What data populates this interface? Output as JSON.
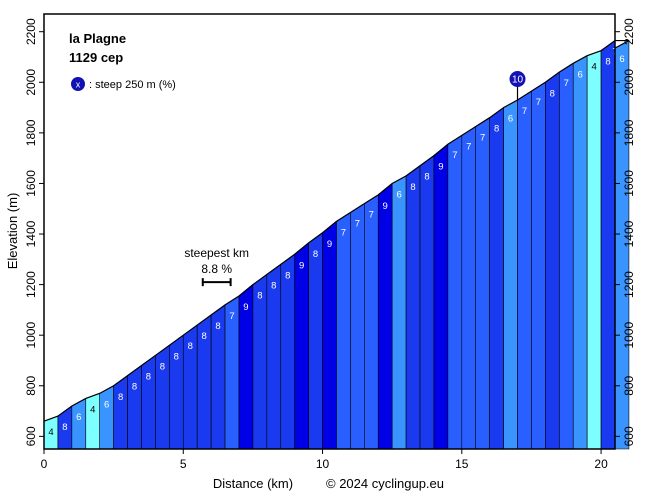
{
  "chart_data": {
    "type": "area",
    "title": "la Plagne",
    "subtitle": "1129 cep",
    "xlabel": "Distance (km)",
    "ylabel": "Elevation (m)",
    "credit": "© 2024 cyclingup.eu",
    "xlim": [
      0,
      20.5
    ],
    "ylim": [
      550,
      2270
    ],
    "xticks": [
      0,
      5,
      10,
      15,
      20
    ],
    "yticks": [
      600,
      800,
      1000,
      1200,
      1400,
      1600,
      1800,
      2000,
      2200
    ],
    "start_elevation": 660,
    "segment_length_km": 0.5,
    "gradients": [
      4,
      8,
      6,
      4,
      6,
      8,
      8,
      8,
      8,
      8,
      8,
      8,
      8,
      7,
      9,
      8,
      8,
      8,
      9,
      8,
      9,
      7,
      7,
      7,
      9,
      6,
      8,
      8,
      9,
      7,
      7,
      7,
      8,
      6,
      7,
      7,
      8,
      7,
      6,
      4,
      8,
      7,
      6
    ],
    "legend": {
      "marker": "x",
      "text": ": steep 250 m (%)"
    },
    "steep_marker": {
      "value": "10",
      "km": 17.0,
      "elevation": 1930
    },
    "steepest_km": {
      "label": "steepest km",
      "value": "8.8 %",
      "start_km": 5.7,
      "end_km": 6.7,
      "elevation": 1210
    },
    "colors": {
      "2-5": "#7dffff",
      "5-7": "#3a94ff",
      "7-8": "#2a5fff",
      "8-9": "#1a3af0",
      "9-10": "#0000e6",
      "outline": "#000000",
      "marker": "#1212b4"
    }
  }
}
